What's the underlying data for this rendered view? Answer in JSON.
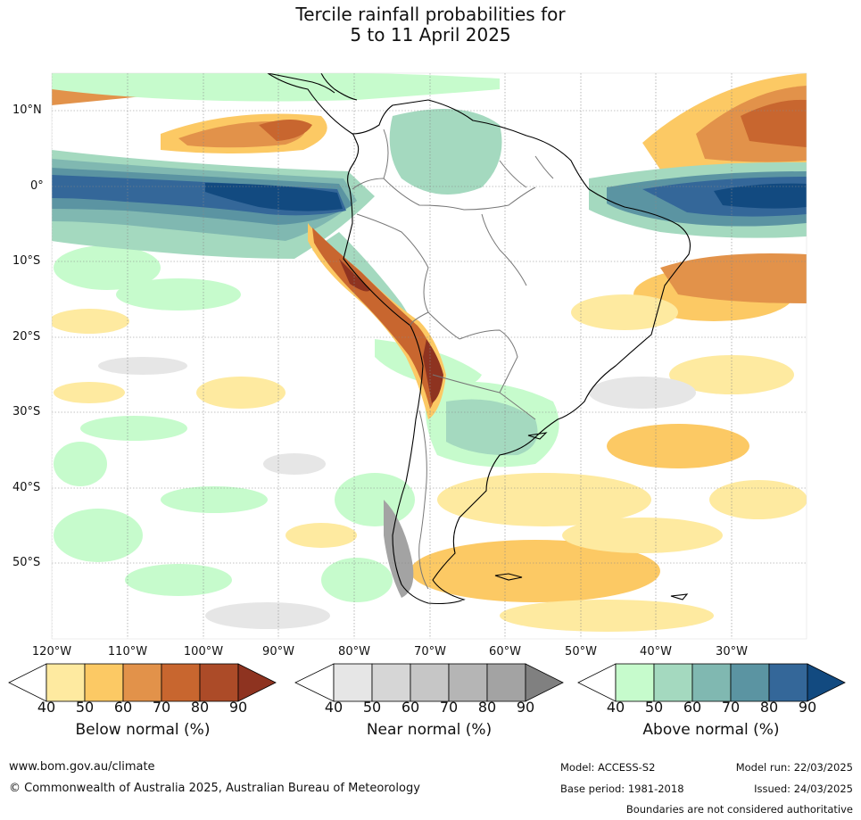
{
  "title": {
    "line1": "Tercile rainfall probabilities for",
    "line2": "5 to 11 April 2025"
  },
  "map": {
    "latitude_labels": [
      "10°N",
      "0°",
      "10°S",
      "20°S",
      "30°S",
      "40°S",
      "50°S"
    ],
    "longitude_labels": [
      "120°W",
      "110°W",
      "100°W",
      "90°W",
      "80°W",
      "70°W",
      "60°W",
      "50°W",
      "40°W",
      "30°W"
    ],
    "gridlines": true
  },
  "legends": [
    {
      "name": "below",
      "title": "Below normal (%)",
      "ticks": [
        "40",
        "50",
        "60",
        "70",
        "80",
        "90"
      ],
      "colors": [
        "#ffffff",
        "#feeaa0",
        "#fcc964",
        "#e2924a",
        "#c8662f",
        "#ac4b28",
        "#8e3320"
      ]
    },
    {
      "name": "near",
      "title": "Near normal (%)",
      "ticks": [
        "40",
        "50",
        "60",
        "70",
        "80",
        "90"
      ],
      "colors": [
        "#ffffff",
        "#e6e6e6",
        "#d6d6d6",
        "#c6c6c6",
        "#b5b5b5",
        "#a3a3a3",
        "#808080"
      ]
    },
    {
      "name": "above",
      "title": "Above normal (%)",
      "ticks": [
        "40",
        "50",
        "60",
        "70",
        "80",
        "90"
      ],
      "colors": [
        "#ffffff",
        "#c6fbcc",
        "#a4d9bf",
        "#80b8b1",
        "#5b94a2",
        "#346799",
        "#124a80"
      ]
    }
  ],
  "footer": {
    "website": "www.bom.gov.au/climate",
    "copyright": "© Commonwealth of Australia 2025, Australian Bureau of Meteorology",
    "model": "Model: ACCESS-S2",
    "model_run": "Model run: 22/03/2025",
    "base_period": "Base period: 1981-2018",
    "issued": "Issued: 24/03/2025",
    "disclaimer": "Boundaries are not considered authoritative"
  }
}
